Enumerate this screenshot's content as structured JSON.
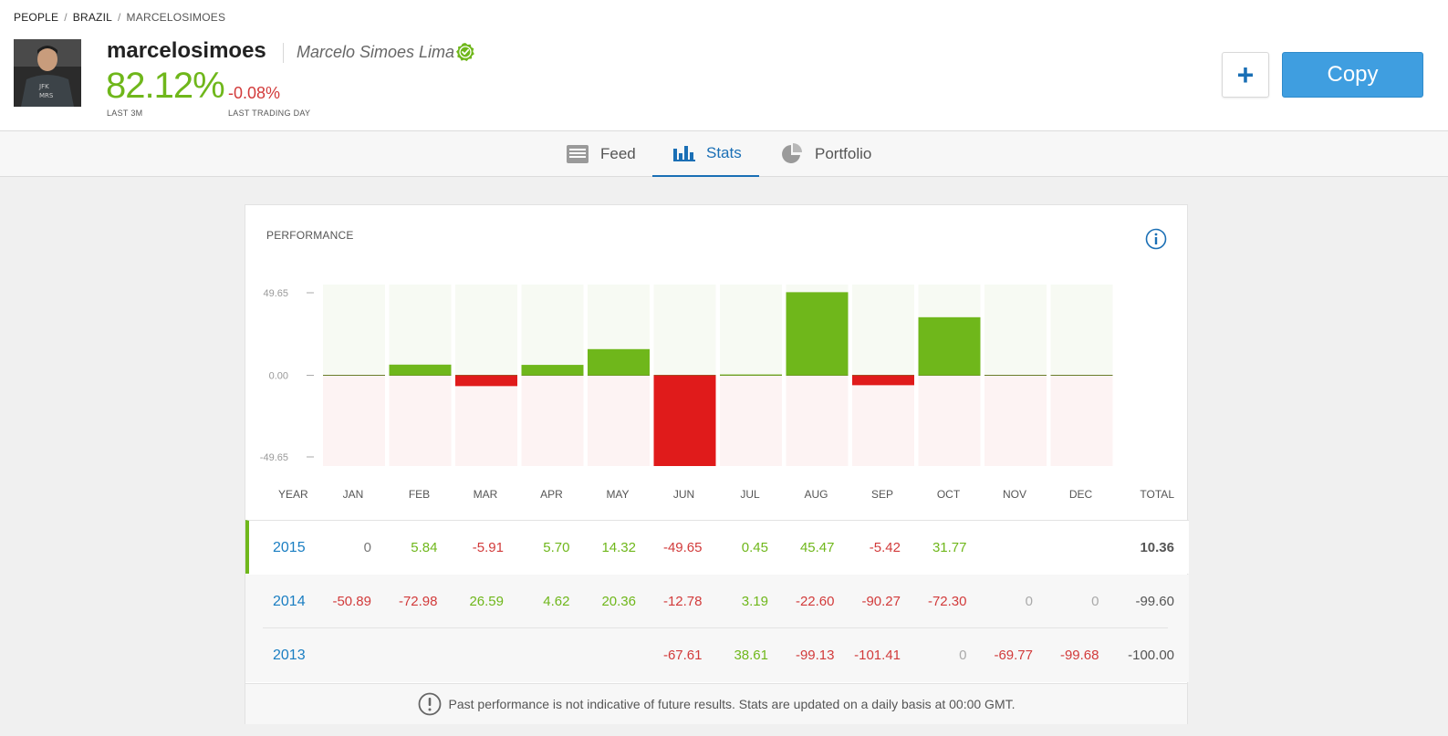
{
  "breadcrumb": {
    "people": "PEOPLE",
    "country": "BRAZIL",
    "user": "MARCELOSIMOES",
    "separator": "/"
  },
  "profile": {
    "username": "marcelosimoes",
    "full_name": "Marcelo Simoes Lima",
    "gain_3m": "82.12%",
    "gain_3m_label": "LAST 3M",
    "gain_day": "-0.08%",
    "gain_day_label": "LAST TRADING DAY",
    "avatar_text_1": "JFK",
    "avatar_text_2": "MRS"
  },
  "actions": {
    "plus_label": "+",
    "copy_label": "Copy"
  },
  "tabs": [
    {
      "label": "Feed",
      "active": false
    },
    {
      "label": "Stats",
      "active": true
    },
    {
      "label": "Portfolio",
      "active": false
    }
  ],
  "performance": {
    "title": "PERFORMANCE",
    "headers": [
      "YEAR",
      "JAN",
      "FEB",
      "MAR",
      "APR",
      "MAY",
      "JUN",
      "JUL",
      "AUG",
      "SEP",
      "OCT",
      "NOV",
      "DEC",
      "TOTAL"
    ],
    "rows": [
      {
        "year": "2015",
        "values": [
          "0",
          "5.84",
          "-5.91",
          "5.70",
          "14.32",
          "-49.65",
          "0.45",
          "45.47",
          "-5.42",
          "31.77",
          "",
          ""
        ],
        "total": "10.36"
      },
      {
        "year": "2014",
        "values": [
          "-50.89",
          "-72.98",
          "26.59",
          "4.62",
          "20.36",
          "-12.78",
          "3.19",
          "-22.60",
          "-90.27",
          "-72.30",
          "0",
          "0"
        ],
        "total": "-99.60"
      },
      {
        "year": "2013",
        "values": [
          "",
          "",
          "",
          "",
          "",
          "-67.61",
          "38.61",
          "-99.13",
          "-101.41",
          "0",
          "-69.77",
          "-99.68"
        ],
        "total": "-100.00"
      }
    ],
    "disclaimer": "Past performance is not indicative of future results. Stats are updated on a daily basis at 00:00 GMT."
  },
  "chart_data": {
    "type": "bar",
    "categories": [
      "JAN",
      "FEB",
      "MAR",
      "APR",
      "MAY",
      "JUN",
      "JUL",
      "AUG",
      "SEP",
      "OCT",
      "NOV",
      "DEC"
    ],
    "values": [
      0,
      5.84,
      -5.91,
      5.7,
      14.32,
      -49.65,
      0.45,
      45.47,
      -5.42,
      31.77,
      0,
      0
    ],
    "ylim": [
      -49.65,
      49.65
    ],
    "y_ticks": [
      "49.65",
      "0.00",
      "-49.65"
    ],
    "colors": {
      "positive": "#6fb71b",
      "negative": "#e01b1b",
      "positive_bg": "#f7faf3",
      "negative_bg": "#fdf3f3"
    }
  },
  "colors": {
    "accent": "#1a6fb5",
    "copy_button": "#3f9ee0",
    "gain": "#6fb71b",
    "loss": "#d23b3b"
  }
}
